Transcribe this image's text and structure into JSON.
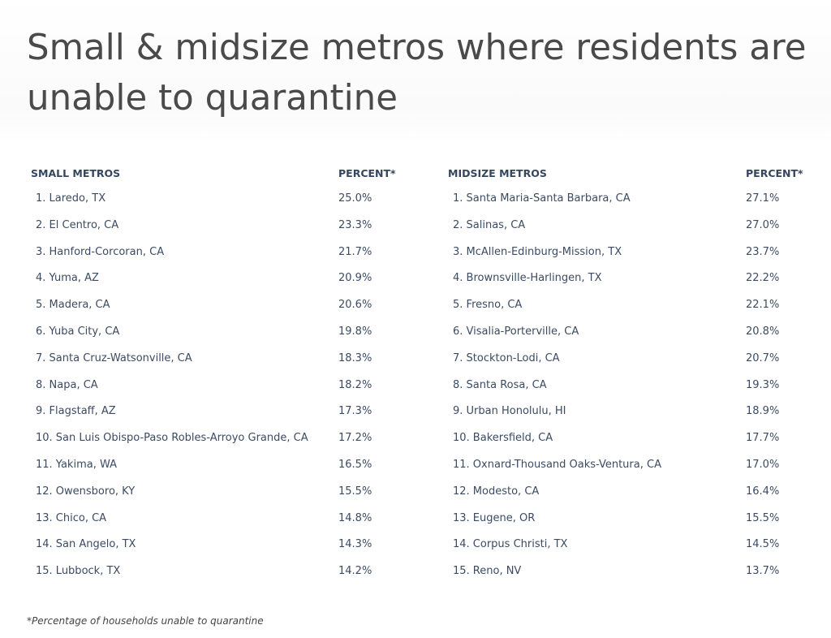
{
  "title": "Small & midsize metros where residents are unable to quarantine",
  "footnote": "*Percentage of households unable to quarantine",
  "chart_data": [
    {
      "type": "table",
      "columns": [
        "SMALL METROS",
        "PERCENT*"
      ],
      "rows": [
        [
          "1. Laredo, TX",
          "25.0%"
        ],
        [
          "2. El Centro, CA",
          "23.3%"
        ],
        [
          "3. Hanford-Corcoran, CA",
          "21.7%"
        ],
        [
          "4. Yuma, AZ",
          "20.9%"
        ],
        [
          "5. Madera, CA",
          "20.6%"
        ],
        [
          "6. Yuba City, CA",
          "19.8%"
        ],
        [
          "7. Santa Cruz-Watsonville, CA",
          "18.3%"
        ],
        [
          "8. Napa, CA",
          "18.2%"
        ],
        [
          "9. Flagstaff, AZ",
          "17.3%"
        ],
        [
          "10. San Luis Obispo-Paso Robles-Arroyo Grande, CA",
          "17.2%"
        ],
        [
          "11. Yakima, WA",
          "16.5%"
        ],
        [
          "12. Owensboro, KY",
          "15.5%"
        ],
        [
          "13. Chico, CA",
          "14.8%"
        ],
        [
          "14. San Angelo, TX",
          "14.3%"
        ],
        [
          "15. Lubbock, TX",
          "14.2%"
        ]
      ]
    },
    {
      "type": "table",
      "columns": [
        "MIDSIZE METROS",
        "PERCENT*"
      ],
      "rows": [
        [
          "1. Santa Maria-Santa Barbara, CA",
          "27.1%"
        ],
        [
          "2. Salinas, CA",
          "27.0%"
        ],
        [
          "3. McAllen-Edinburg-Mission, TX",
          "23.7%"
        ],
        [
          "4. Brownsville-Harlingen, TX",
          "22.2%"
        ],
        [
          "5. Fresno, CA",
          "22.1%"
        ],
        [
          "6. Visalia-Porterville, CA",
          "20.8%"
        ],
        [
          "7. Stockton-Lodi, CA",
          "20.7%"
        ],
        [
          "8. Santa Rosa, CA",
          "19.3%"
        ],
        [
          "9. Urban Honolulu, HI",
          "18.9%"
        ],
        [
          "10. Bakersfield, CA",
          "17.7%"
        ],
        [
          "11. Oxnard-Thousand Oaks-Ventura, CA",
          "17.0%"
        ],
        [
          "12. Modesto, CA",
          "16.4%"
        ],
        [
          "13. Eugene, OR",
          "15.5%"
        ],
        [
          "14. Corpus Christi, TX",
          "14.5%"
        ],
        [
          "15. Reno, NV",
          "13.7%"
        ]
      ]
    }
  ]
}
